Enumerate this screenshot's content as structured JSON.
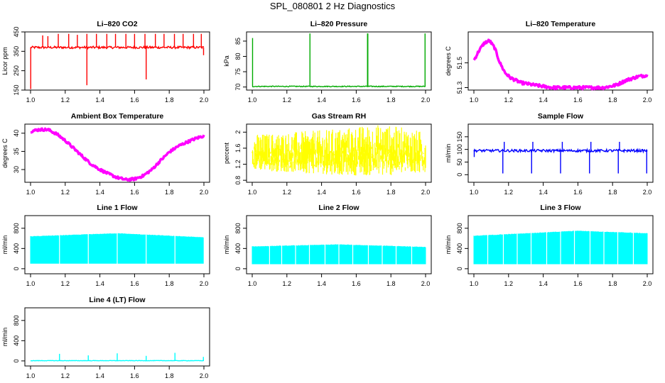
{
  "page_title": "SPL_080801  2 Hz Diagnostics",
  "chart_data": [
    {
      "type": "line",
      "title": "Li–820 CO2",
      "ylabel": "Licor ppm",
      "color": "#ff0000",
      "xlim": [
        1.0,
        2.0
      ],
      "ylim": [
        150,
        450
      ],
      "xticks": [
        "1.0",
        "1.2",
        "1.4",
        "1.6",
        "1.8",
        "2.0"
      ],
      "yticks": [
        150,
        250,
        350,
        450
      ],
      "series": [
        {
          "name": "CO2",
          "base": 370,
          "noise": 6,
          "spikes": [
            [
              1.001,
              155
            ],
            [
              1.07,
              432
            ],
            [
              1.1,
              428
            ],
            [
              1.16,
              440
            ],
            [
              1.22,
              440
            ],
            [
              1.27,
              435
            ],
            [
              1.325,
              175
            ],
            [
              1.325,
              440
            ],
            [
              1.38,
              440
            ],
            [
              1.44,
              440
            ],
            [
              1.49,
              440
            ],
            [
              1.55,
              440
            ],
            [
              1.6,
              440
            ],
            [
              1.66,
              440
            ],
            [
              1.667,
              205
            ],
            [
              1.72,
              440
            ],
            [
              1.77,
              440
            ],
            [
              1.83,
              440
            ],
            [
              1.88,
              440
            ],
            [
              1.94,
              440
            ],
            [
              1.985,
              440
            ],
            [
              1.998,
              330
            ]
          ]
        }
      ]
    },
    {
      "type": "line",
      "title": "Li–820 Pressure",
      "ylabel": "kPa",
      "color": "#00aa00",
      "xlim": [
        1.0,
        2.0
      ],
      "ylim": [
        69,
        88
      ],
      "xticks": [
        "1.0",
        "1.2",
        "1.4",
        "1.6",
        "1.8",
        "2.0"
      ],
      "yticks": [
        70,
        75,
        80,
        85
      ],
      "series": [
        {
          "name": "Pressure",
          "base": 70.2,
          "noise": 0.15,
          "spikes": [
            [
              1.002,
              86
            ],
            [
              1.333,
              87.5
            ],
            [
              1.665,
              87.5
            ],
            [
              1.667,
              87.5
            ],
            [
              1.997,
              87.5
            ]
          ]
        }
      ]
    },
    {
      "type": "line",
      "title": "Li–820 Temperature",
      "ylabel": "degrees C",
      "color": "#ff00ff",
      "xlim": [
        1.0,
        2.0
      ],
      "ylim": [
        51.28,
        51.75
      ],
      "xticks": [
        "1.0",
        "1.2",
        "1.4",
        "1.6",
        "1.8",
        "2.0"
      ],
      "yticks": [
        51.3,
        51.5
      ],
      "series": [
        {
          "name": "Temperature",
          "noise": 0.012,
          "points": [
            [
              1.0,
              51.52
            ],
            [
              1.03,
              51.6
            ],
            [
              1.06,
              51.66
            ],
            [
              1.09,
              51.68
            ],
            [
              1.12,
              51.62
            ],
            [
              1.15,
              51.5
            ],
            [
              1.18,
              51.42
            ],
            [
              1.21,
              51.38
            ],
            [
              1.27,
              51.34
            ],
            [
              1.35,
              51.32
            ],
            [
              1.45,
              51.3
            ],
            [
              1.6,
              51.3
            ],
            [
              1.75,
              51.3
            ],
            [
              1.82,
              51.32
            ],
            [
              1.88,
              51.36
            ],
            [
              1.95,
              51.39
            ],
            [
              2.0,
              51.4
            ]
          ]
        }
      ]
    },
    {
      "type": "line",
      "title": "Ambient Box Temperature",
      "ylabel": "degrees C",
      "color": "#ff00ff",
      "xlim": [
        1.0,
        2.0
      ],
      "ylim": [
        26.5,
        42.5
      ],
      "xticks": [
        "1.0",
        "1.2",
        "1.4",
        "1.6",
        "1.8",
        "2.0"
      ],
      "yticks": [
        30,
        35,
        40
      ],
      "series": [
        {
          "name": "Box Temperature",
          "noise": 0.35,
          "points": [
            [
              1.0,
              40.5
            ],
            [
              1.05,
              41.0
            ],
            [
              1.1,
              41.0
            ],
            [
              1.15,
              39.8
            ],
            [
              1.2,
              38.0
            ],
            [
              1.25,
              35.8
            ],
            [
              1.3,
              33.6
            ],
            [
              1.35,
              31.5
            ],
            [
              1.4,
              30.0
            ],
            [
              1.45,
              28.8
            ],
            [
              1.5,
              27.8
            ],
            [
              1.55,
              27.2
            ],
            [
              1.6,
              27.4
            ],
            [
              1.65,
              28.3
            ],
            [
              1.7,
              30.0
            ],
            [
              1.75,
              32.5
            ],
            [
              1.8,
              34.8
            ],
            [
              1.85,
              36.4
            ],
            [
              1.9,
              37.5
            ],
            [
              1.95,
              38.5
            ],
            [
              2.0,
              39.3
            ]
          ]
        }
      ]
    },
    {
      "type": "line",
      "title": "Gas Stream RH",
      "ylabel": "percent",
      "color": "#ffff00",
      "xlim": [
        1.0,
        2.0
      ],
      "ylim": [
        0.75,
        2.2
      ],
      "xticks": [
        "1.0",
        "1.2",
        "1.4",
        "1.6",
        "1.8",
        "2.0"
      ],
      "yticks": [
        0.8,
        1.2,
        1.6,
        2.0
      ],
      "series": [
        {
          "name": "RH",
          "band": [
            [
              1.0,
              1.05,
              1.95
            ],
            [
              1.2,
              1.0,
              2.0
            ],
            [
              1.4,
              0.95,
              2.05
            ],
            [
              1.6,
              0.92,
              2.15
            ],
            [
              1.75,
              0.9,
              2.2
            ],
            [
              1.9,
              0.95,
              2.1
            ],
            [
              2.0,
              1.0,
              2.0
            ]
          ]
        }
      ]
    },
    {
      "type": "line",
      "title": "Sample Flow",
      "ylabel": "ml/min",
      "color": "#0000ff",
      "xlim": [
        1.0,
        2.0
      ],
      "ylim": [
        -30,
        200
      ],
      "xticks": [
        "1.0",
        "1.2",
        "1.4",
        "1.6",
        "1.8",
        "2.0"
      ],
      "yticks": [
        0,
        50,
        100,
        150
      ],
      "series": [
        {
          "name": "Sample Flow",
          "base": 95,
          "noise": 5,
          "spikes": [
            [
              1.002,
              70
            ],
            [
              1.167,
              5
            ],
            [
              1.175,
              130
            ],
            [
              1.333,
              5
            ],
            [
              1.34,
              130
            ],
            [
              1.5,
              5
            ],
            [
              1.51,
              130
            ],
            [
              1.667,
              5
            ],
            [
              1.675,
              130
            ],
            [
              1.833,
              5
            ],
            [
              1.84,
              130
            ],
            [
              1.997,
              5
            ]
          ]
        }
      ]
    },
    {
      "type": "area",
      "title": "Line 1 Flow",
      "ylabel": "ml/min",
      "color": "#00ffff",
      "xlim": [
        1.0,
        2.0
      ],
      "ylim": [
        -100,
        1050
      ],
      "xticks": [
        "1.0",
        "1.2",
        "1.4",
        "1.6",
        "1.8",
        "2.0"
      ],
      "yticks": [
        0,
        400,
        800
      ],
      "series": [
        {
          "name": "Line 1",
          "low": 100,
          "high": [
            [
              1.0,
              640
            ],
            [
              1.5,
              700
            ],
            [
              2.0,
              620
            ]
          ],
          "gaps": [
            1.167,
            1.333,
            1.5,
            1.667,
            1.833
          ]
        }
      ]
    },
    {
      "type": "area",
      "title": "Line 2 Flow",
      "ylabel": "ml/min",
      "color": "#00ffff",
      "xlim": [
        1.0,
        2.0
      ],
      "ylim": [
        -100,
        1050
      ],
      "xticks": [
        "1.0",
        "1.2",
        "1.4",
        "1.6",
        "1.8",
        "2.0"
      ],
      "yticks": [
        0,
        400,
        800
      ],
      "series": [
        {
          "name": "Line 2",
          "low": 90,
          "high": [
            [
              1.0,
              440
            ],
            [
              1.5,
              480
            ],
            [
              2.0,
              430
            ]
          ],
          "gaps": [
            1.1,
            1.17,
            1.25,
            1.33,
            1.42,
            1.5,
            1.58,
            1.67,
            1.75,
            1.83,
            1.92
          ]
        }
      ]
    },
    {
      "type": "area",
      "title": "Line 3 Flow",
      "ylabel": "ml/min",
      "color": "#00ffff",
      "xlim": [
        1.0,
        2.0
      ],
      "ylim": [
        -100,
        1050
      ],
      "xticks": [
        "1.0",
        "1.2",
        "1.4",
        "1.6",
        "1.8",
        "2.0"
      ],
      "yticks": [
        0,
        400,
        800
      ],
      "series": [
        {
          "name": "Line 3",
          "low": 90,
          "high": [
            [
              1.0,
              650
            ],
            [
              1.6,
              750
            ],
            [
              2.0,
              700
            ]
          ],
          "gaps": [
            1.08,
            1.17,
            1.25,
            1.33,
            1.42,
            1.5,
            1.58,
            1.67,
            1.75,
            1.83,
            1.92
          ]
        }
      ]
    },
    {
      "type": "line",
      "title": "Line 4 (LT) Flow",
      "ylabel": "ml/min",
      "color": "#00ffff",
      "xlim": [
        1.0,
        2.0
      ],
      "ylim": [
        -100,
        1050
      ],
      "xticks": [
        "1.0",
        "1.2",
        "1.4",
        "1.6",
        "1.8",
        "2.0"
      ],
      "yticks": [
        0,
        400,
        800
      ],
      "series": [
        {
          "name": "Line 4",
          "base": 5,
          "noise": 4,
          "spikes": [
            [
              1.167,
              140
            ],
            [
              1.333,
              110
            ],
            [
              1.5,
              150
            ],
            [
              1.667,
              100
            ],
            [
              1.833,
              160
            ],
            [
              1.997,
              80
            ]
          ]
        }
      ]
    }
  ]
}
